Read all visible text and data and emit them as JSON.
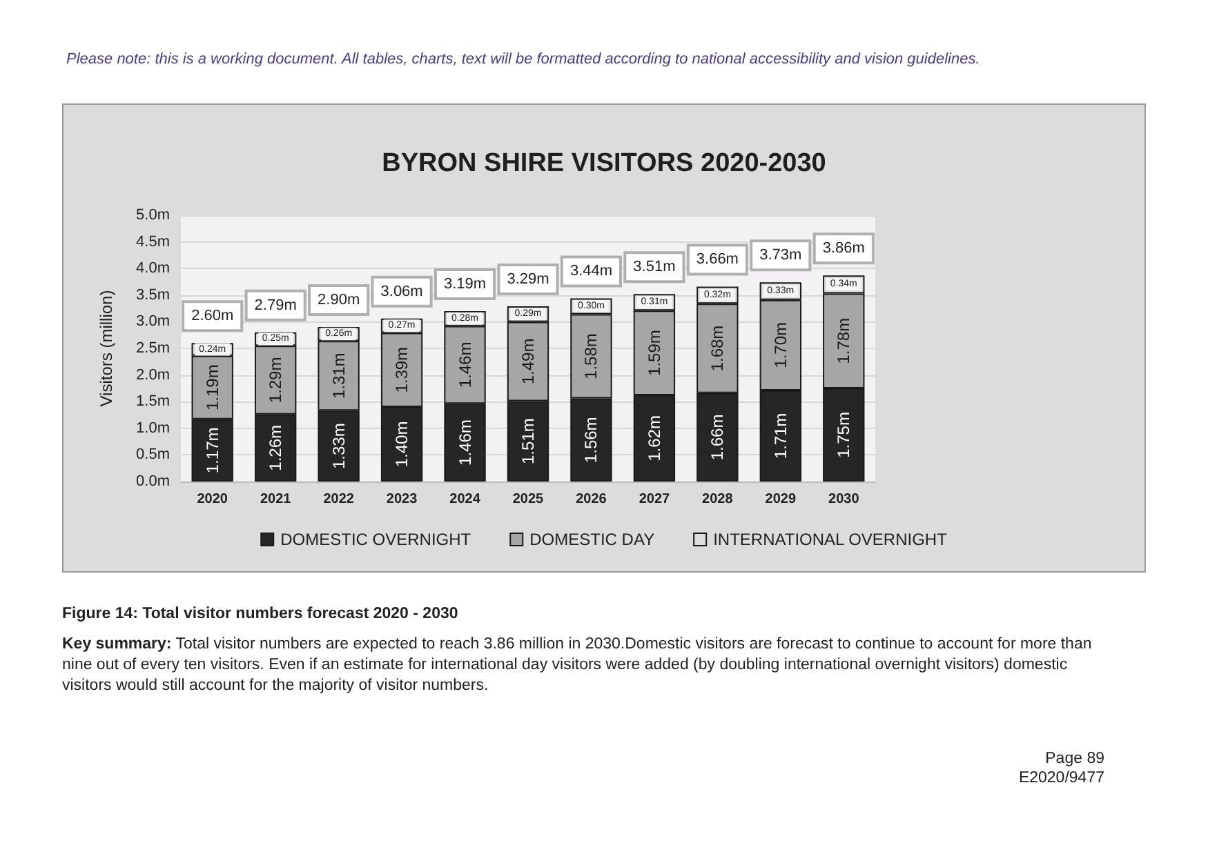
{
  "chart_data": {
    "type": "bar",
    "title": "BYRON SHIRE VISITORS 2020-2030",
    "ylabel": "Visitors (million)",
    "categories": [
      "2020",
      "2021",
      "2022",
      "2023",
      "2024",
      "2025",
      "2026",
      "2027",
      "2028",
      "2029",
      "2030"
    ],
    "stacked": true,
    "series": [
      {
        "name": "DOMESTIC OVERNIGHT",
        "color": "#262626",
        "values": [
          1.17,
          1.26,
          1.33,
          1.4,
          1.46,
          1.51,
          1.56,
          1.62,
          1.66,
          1.71,
          1.75
        ],
        "value_labels": [
          "1.17m",
          "1.26m",
          "1.33m",
          "1.40m",
          "1.46m",
          "1.51m",
          "1.56m",
          "1.62m",
          "1.66m",
          "1.71m",
          "1.75m"
        ]
      },
      {
        "name": "DOMESTIC DAY",
        "color": "#a6a6a6",
        "values": [
          1.19,
          1.29,
          1.31,
          1.39,
          1.46,
          1.49,
          1.58,
          1.59,
          1.68,
          1.7,
          1.78
        ],
        "value_labels": [
          "1.19m",
          "1.29m",
          "1.31m",
          "1.39m",
          "1.46m",
          "1.49m",
          "1.58m",
          "1.59m",
          "1.68m",
          "1.70m",
          "1.78m"
        ]
      },
      {
        "name": "INTERNATIONAL OVERNIGHT",
        "color": "#dedede",
        "values": [
          0.24,
          0.25,
          0.26,
          0.27,
          0.28,
          0.29,
          0.3,
          0.31,
          0.32,
          0.33,
          0.34
        ],
        "value_labels": [
          "0.24m",
          "0.25m",
          "0.26m",
          "0.27m",
          "0.28m",
          "0.29m",
          "0.30m",
          "0.31m",
          "0.32m",
          "0.33m",
          "0.34m"
        ]
      }
    ],
    "totals": [
      "2.60m",
      "2.79m",
      "2.90m",
      "3.06m",
      "3.19m",
      "3.29m",
      "3.44m",
      "3.51m",
      "3.66m",
      "3.73m",
      "3.86m"
    ],
    "ylim": [
      0,
      5
    ],
    "yticks": [
      {
        "value": 0,
        "label": "0.0m"
      },
      {
        "value": 0.5,
        "label": "0.5m"
      },
      {
        "value": 1,
        "label": "1.0m"
      },
      {
        "value": 1.5,
        "label": "1.5m"
      },
      {
        "value": 2,
        "label": "2.0m"
      },
      {
        "value": 2.5,
        "label": "2.5m"
      },
      {
        "value": 3,
        "label": "3.0m"
      },
      {
        "value": 3.5,
        "label": "3.5m"
      },
      {
        "value": 4,
        "label": "4.0m"
      },
      {
        "value": 4.5,
        "label": "4.5m"
      },
      {
        "value": 5,
        "label": "5.0m"
      }
    ],
    "grid": "y",
    "legend": "bottom",
    "annotations": [
      "Please note: this is a working document. All tables, charts, text will be formatted according to national accessibility and vision guidelines.",
      "Figure 14: Total visitor numbers forecast 2020 - 2030",
      "Key summary: Total visitor numbers are expected to reach 3.86 million in 2030.Domestic visitors are forecast to continue to account for more than nine out of every ten visitors. Even if an estimate for international day visitors were added (by doubling international overnight visitors) domestic visitors would still account for the majority of visitor numbers.",
      "Page 89",
      "E2020/9477"
    ]
  }
}
